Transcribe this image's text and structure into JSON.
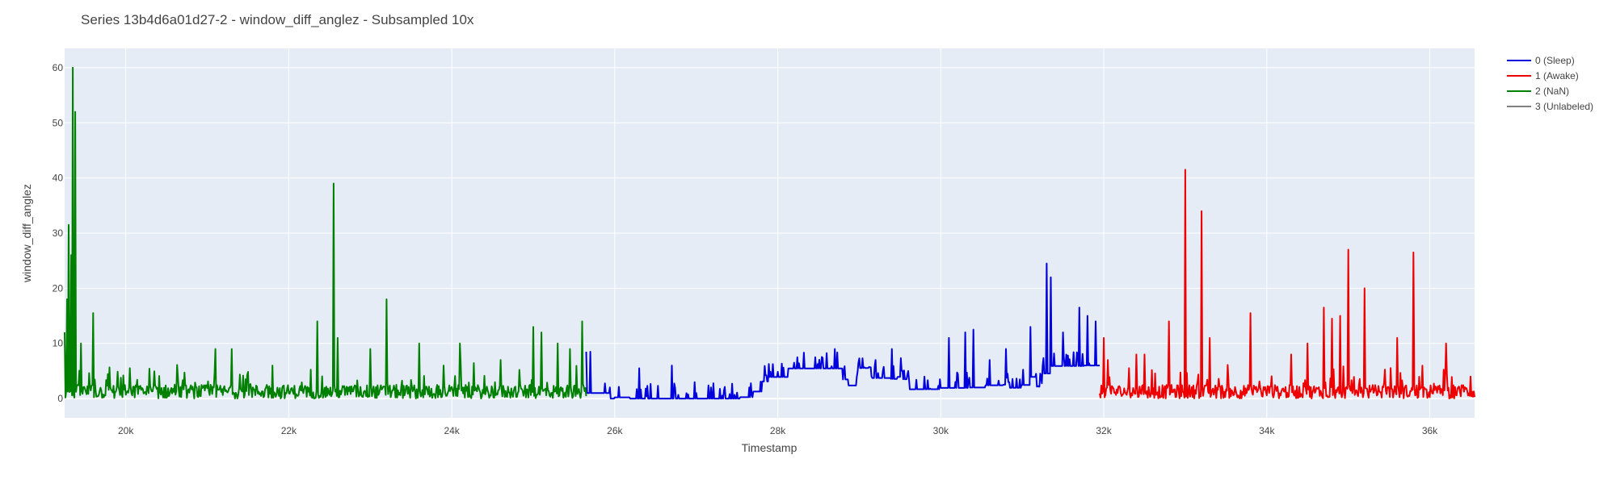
{
  "chart_data": {
    "type": "line",
    "title": "Series 13b4d6a01d27-2 - window_diff_anglez - Subsampled 10x",
    "xlabel": "Timestamp",
    "ylabel": "window_diff_anglez",
    "xlim": [
      19250,
      36550
    ],
    "ylim": [
      -3.5,
      63.5
    ],
    "grid": true,
    "legend_position": "top-right",
    "background": "#e5ecf6",
    "x_ticks": [
      {
        "value": 20000,
        "label": "20k"
      },
      {
        "value": 22000,
        "label": "22k"
      },
      {
        "value": 24000,
        "label": "24k"
      },
      {
        "value": 26000,
        "label": "26k"
      },
      {
        "value": 28000,
        "label": "28k"
      },
      {
        "value": 30000,
        "label": "30k"
      },
      {
        "value": 32000,
        "label": "32k"
      },
      {
        "value": 34000,
        "label": "34k"
      },
      {
        "value": 36000,
        "label": "36k"
      }
    ],
    "y_ticks": [
      {
        "value": 0,
        "label": "0"
      },
      {
        "value": 10,
        "label": "10"
      },
      {
        "value": 20,
        "label": "20"
      },
      {
        "value": 30,
        "label": "30"
      },
      {
        "value": 40,
        "label": "40"
      },
      {
        "value": 50,
        "label": "50"
      },
      {
        "value": 60,
        "label": "60"
      }
    ],
    "series": [
      {
        "name": "0 (Sleep)",
        "color": "#0000dd",
        "x_range": [
          25650,
          31950
        ],
        "peaks": [
          [
            25650,
            8.5
          ],
          [
            25700,
            8.5
          ],
          [
            26300,
            5.5
          ],
          [
            26700,
            6
          ],
          [
            27000,
            1
          ],
          [
            28200,
            6.5
          ],
          [
            28700,
            9
          ],
          [
            29200,
            7
          ],
          [
            29400,
            9
          ],
          [
            29600,
            5
          ],
          [
            30100,
            11
          ],
          [
            30300,
            12
          ],
          [
            30400,
            12.5
          ],
          [
            30600,
            7
          ],
          [
            30800,
            9
          ],
          [
            31100,
            13
          ],
          [
            31300,
            24.5
          ],
          [
            31350,
            22
          ],
          [
            31500,
            12
          ],
          [
            31700,
            16.5
          ],
          [
            31800,
            15
          ],
          [
            31900,
            14
          ]
        ]
      },
      {
        "name": "1 (Awake)",
        "color": "#ee0000",
        "x_range": [
          31950,
          36550
        ],
        "peaks": [
          [
            32000,
            11
          ],
          [
            32050,
            7
          ],
          [
            32400,
            8
          ],
          [
            32500,
            8
          ],
          [
            32800,
            14
          ],
          [
            33000,
            41.5
          ],
          [
            33200,
            34
          ],
          [
            33300,
            11
          ],
          [
            33800,
            15.5
          ],
          [
            34300,
            8
          ],
          [
            34500,
            10
          ],
          [
            34700,
            16.5
          ],
          [
            34800,
            14.5
          ],
          [
            34900,
            15
          ],
          [
            35000,
            27
          ],
          [
            35200,
            20
          ],
          [
            35600,
            11
          ],
          [
            35800,
            26.5
          ],
          [
            36200,
            10
          ],
          [
            36500,
            4
          ]
        ]
      },
      {
        "name": "2 (NaN)",
        "color": "#008000",
        "x_range": [
          19250,
          25650
        ],
        "peaks": [
          [
            19250,
            12
          ],
          [
            19280,
            18
          ],
          [
            19300,
            31.5
          ],
          [
            19330,
            26
          ],
          [
            19350,
            60
          ],
          [
            19380,
            52
          ],
          [
            19450,
            10
          ],
          [
            19600,
            15.5
          ],
          [
            21100,
            9
          ],
          [
            21300,
            9
          ],
          [
            21800,
            6
          ],
          [
            22350,
            14
          ],
          [
            22550,
            39
          ],
          [
            22600,
            11
          ],
          [
            23000,
            9
          ],
          [
            23200,
            18
          ],
          [
            23600,
            10
          ],
          [
            23900,
            6
          ],
          [
            24100,
            10
          ],
          [
            24600,
            7
          ],
          [
            25000,
            13
          ],
          [
            25100,
            12
          ],
          [
            25300,
            10
          ],
          [
            25450,
            9
          ],
          [
            25600,
            14
          ]
        ]
      },
      {
        "name": "3 (Unlabeled)",
        "color": "#808080",
        "x_range": null,
        "peaks": []
      }
    ]
  }
}
